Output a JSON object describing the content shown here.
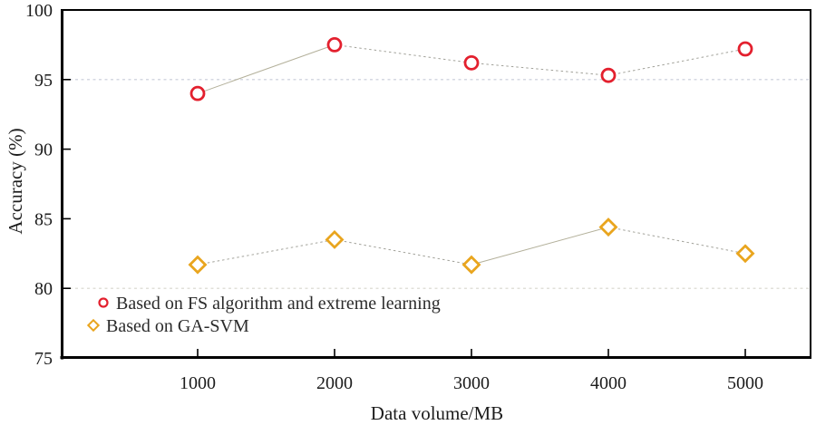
{
  "chart_data": {
    "type": "line",
    "title": "",
    "xlabel": "Data volume/MB",
    "ylabel": "Accuracy (%)",
    "x": [
      1000,
      2000,
      3000,
      4000,
      5000
    ],
    "xticks": [
      1000,
      2000,
      3000,
      4000,
      5000
    ],
    "yticks": [
      75,
      80,
      85,
      90,
      95,
      100
    ],
    "xlim": [
      0,
      5500
    ],
    "ylim": [
      75,
      100
    ],
    "grid": "horizontal-partial",
    "gridlines": [
      {
        "y": 95,
        "color": "#c7ccd9"
      },
      {
        "y": 80,
        "color": "#d7d6cd"
      }
    ],
    "legend_position": "lower-left-inside",
    "series": [
      {
        "name": "Based on FS algorithm and extreme learning",
        "marker": "circle",
        "color": "#e3202e",
        "values": [
          94.0,
          97.5,
          96.2,
          95.3,
          97.2
        ],
        "segment_styles": [
          "solid",
          "dashed",
          "dashed",
          "dashed"
        ]
      },
      {
        "name": "Based on GA-SVM",
        "marker": "diamond",
        "color": "#e9a51e",
        "values": [
          81.7,
          83.5,
          81.7,
          84.4,
          82.5
        ],
        "segment_styles": [
          "dashed",
          "dashed",
          "solid",
          "dashed"
        ]
      }
    ],
    "connector": {
      "solid_color": "#b3b09a",
      "dashed_color": "#a2a29a",
      "width": 1
    },
    "axis_color": "#000000",
    "tick_label_color": "#1c1c1c",
    "legend_text_color": "#2b2b2b",
    "background": "#ffffff"
  }
}
